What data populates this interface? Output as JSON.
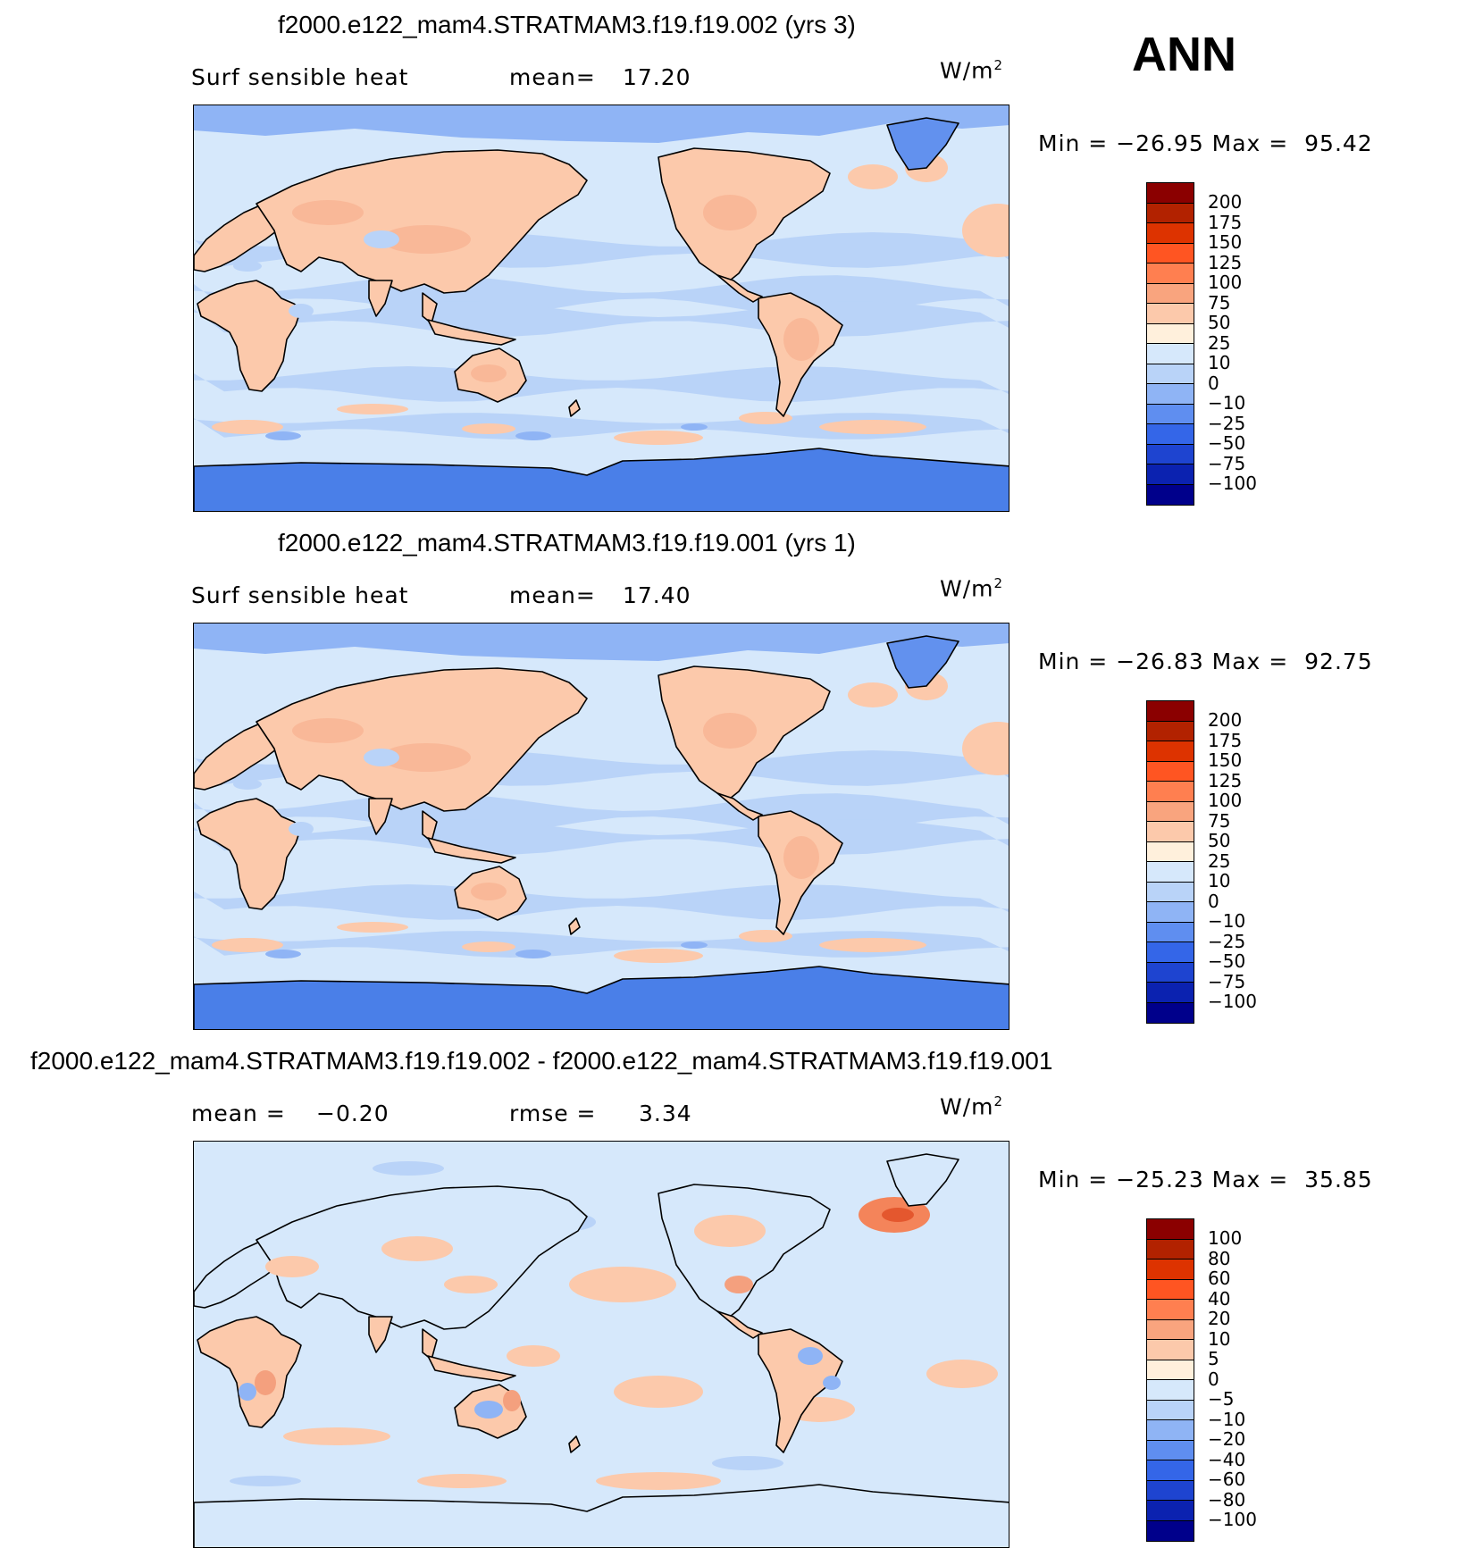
{
  "header": {
    "season": "ANN"
  },
  "panels": [
    {
      "title": "f2000.e122_mam4.STRATMAM3.f19.f19.002 (yrs 3)",
      "left_label": "Surf sensible heat",
      "mid_label": "mean=",
      "mid_value": "17.20",
      "units": "W/m",
      "units_exp": "2",
      "minmax": "Min = −26.95 Max =  95.42",
      "levels": [
        "200",
        "175",
        "150",
        "125",
        "100",
        "75",
        "50",
        "25",
        "10",
        "0",
        "−10",
        "−25",
        "−50",
        "−75",
        "−100"
      ]
    },
    {
      "title": "f2000.e122_mam4.STRATMAM3.f19.f19.001 (yrs 1)",
      "left_label": "Surf sensible heat",
      "mid_label": "mean=",
      "mid_value": "17.40",
      "units": "W/m",
      "units_exp": "2",
      "minmax": "Min = −26.83 Max =  92.75",
      "levels": [
        "200",
        "175",
        "150",
        "125",
        "100",
        "75",
        "50",
        "25",
        "10",
        "0",
        "−10",
        "−25",
        "−50",
        "−75",
        "−100"
      ]
    },
    {
      "title": "f2000.e122_mam4.STRATMAM3.f19.f19.002 - f2000.e122_mam4.STRATMAM3.f19.f19.001",
      "left_label": "mean =",
      "left_value": "−0.20",
      "mid_label": "rmse =",
      "mid_value": "3.34",
      "units": "W/m",
      "units_exp": "2",
      "minmax": "Min = −25.23 Max =  35.85",
      "levels": [
        "100",
        "80",
        "60",
        "40",
        "20",
        "10",
        "5",
        "0",
        "−5",
        "−10",
        "−20",
        "−40",
        "−60",
        "−80",
        "−100"
      ]
    }
  ],
  "colorbar_colors": [
    "#8b0000",
    "#b22200",
    "#dd3300",
    "#ff5522",
    "#ff7f50",
    "#f9a47e",
    "#fcc9ab",
    "#fff0dc",
    "#d6e8fb",
    "#b9d3f8",
    "#8fb4f5",
    "#5f8ef0",
    "#3466e8",
    "#1e44d0",
    "#0b22b0",
    "#00008b"
  ]
}
